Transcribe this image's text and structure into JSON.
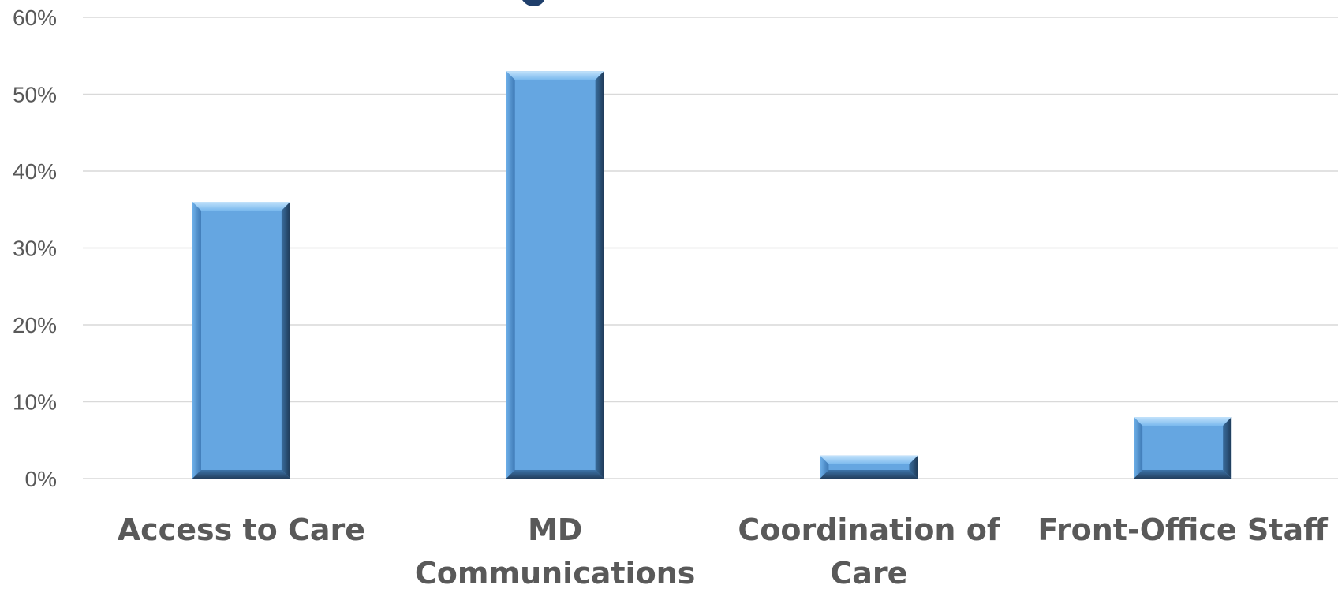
{
  "chart_data": {
    "type": "bar",
    "title": "",
    "xlabel": "",
    "ylabel": "",
    "categories": [
      "Access to Care",
      "MD Communications",
      "Coordination of Care",
      "Front-Office Staff"
    ],
    "category_lines": [
      [
        "Access to Care"
      ],
      [
        "MD",
        "Communications"
      ],
      [
        "Coordination of",
        "Care"
      ],
      [
        "Front-Office Staff"
      ]
    ],
    "values": [
      36,
      53,
      3,
      8
    ],
    "ylim": [
      0,
      60
    ],
    "yticks": [
      0,
      10,
      20,
      30,
      40,
      50,
      60
    ],
    "ytick_labels": [
      "0%",
      "10%",
      "20%",
      "30%",
      "40%",
      "50%",
      "60%"
    ],
    "grid": true,
    "legend": "none",
    "colors": {
      "bar": "#65a6e1",
      "bar_light": "#a9d3f6",
      "bar_dark": "#2a4f74",
      "grid": "#d9d9d9",
      "text": "#595959",
      "title_fragment": "#1f3f6b"
    }
  }
}
